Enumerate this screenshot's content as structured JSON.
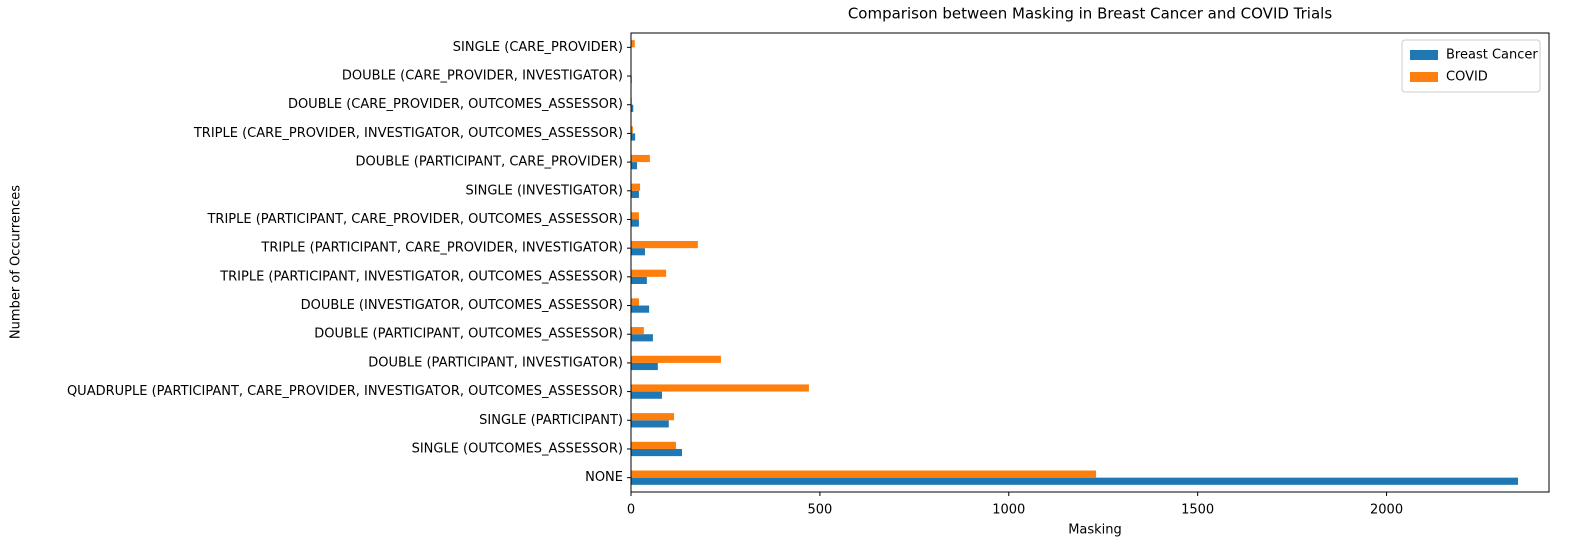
{
  "chart_data": {
    "type": "barh",
    "title": "Comparison between Masking in Breast Cancer and COVID Trials",
    "x_label": "Masking",
    "y_label": "Number of Occurrences",
    "categories": [
      "NONE",
      "SINGLE (OUTCOMES_ASSESSOR)",
      "SINGLE (PARTICIPANT)",
      "QUADRUPLE (PARTICIPANT, CARE_PROVIDER, INVESTIGATOR, OUTCOMES_ASSESSOR)",
      "DOUBLE (PARTICIPANT, INVESTIGATOR)",
      "DOUBLE (PARTICIPANT, OUTCOMES_ASSESSOR)",
      "DOUBLE (INVESTIGATOR, OUTCOMES_ASSESSOR)",
      "TRIPLE (PARTICIPANT, INVESTIGATOR, OUTCOMES_ASSESSOR)",
      "TRIPLE (PARTICIPANT, CARE_PROVIDER, INVESTIGATOR)",
      "TRIPLE (PARTICIPANT, CARE_PROVIDER, OUTCOMES_ASSESSOR)",
      "SINGLE (INVESTIGATOR)",
      "DOUBLE (PARTICIPANT, CARE_PROVIDER)",
      "TRIPLE (CARE_PROVIDER, INVESTIGATOR, OUTCOMES_ASSESSOR)",
      "DOUBLE (CARE_PROVIDER, OUTCOMES_ASSESSOR)",
      "DOUBLE (CARE_PROVIDER, INVESTIGATOR)",
      "SINGLE (CARE_PROVIDER)"
    ],
    "series": [
      {
        "name": "Breast Cancer",
        "color": "#1f77b4",
        "values": [
          2348,
          135,
          100,
          82,
          71,
          58,
          48,
          42,
          37,
          21,
          21,
          16,
          11,
          6,
          2,
          1
        ]
      },
      {
        "name": "COVID",
        "color": "#ff7f0e",
        "values": [
          1231,
          119,
          114,
          471,
          238,
          34,
          21,
          93,
          177,
          21,
          24,
          50,
          5,
          2,
          1,
          10
        ]
      }
    ],
    "xlim": [
      0,
      2430
    ],
    "xticks": [
      0,
      500,
      1000,
      1500,
      2000
    ],
    "legend": "upper right"
  }
}
